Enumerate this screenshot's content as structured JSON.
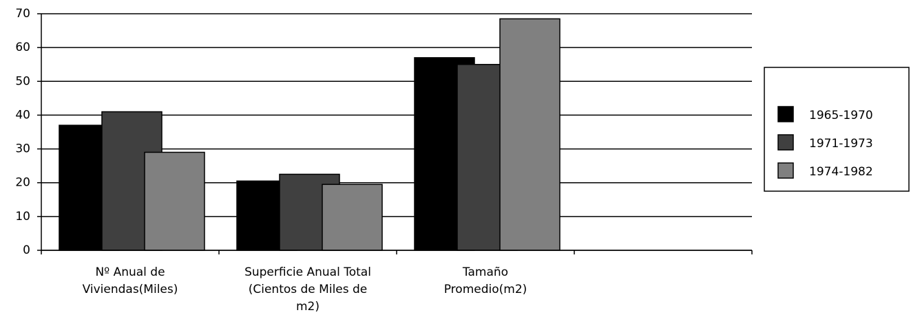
{
  "chart_data": {
    "type": "bar",
    "categories": [
      "Nº Anual de Viviendas(Miles)",
      "Superficie Anual Total (Cientos de Miles de m2)",
      "Tamaño Promedio(m2)",
      null
    ],
    "series": [
      {
        "name": "1965-1970",
        "color": "#000000",
        "values": [
          37,
          20.5,
          57,
          null
        ]
      },
      {
        "name": "1971-1973",
        "color": "#404040",
        "values": [
          41,
          22.5,
          55,
          null
        ]
      },
      {
        "name": "1974-1982",
        "color": "#808080",
        "values": [
          29,
          19.5,
          68.5,
          null
        ]
      }
    ],
    "ylim": [
      0,
      70
    ],
    "yticks": [
      0,
      10,
      20,
      30,
      40,
      50,
      60,
      70
    ],
    "grid": true,
    "legend": "right"
  }
}
